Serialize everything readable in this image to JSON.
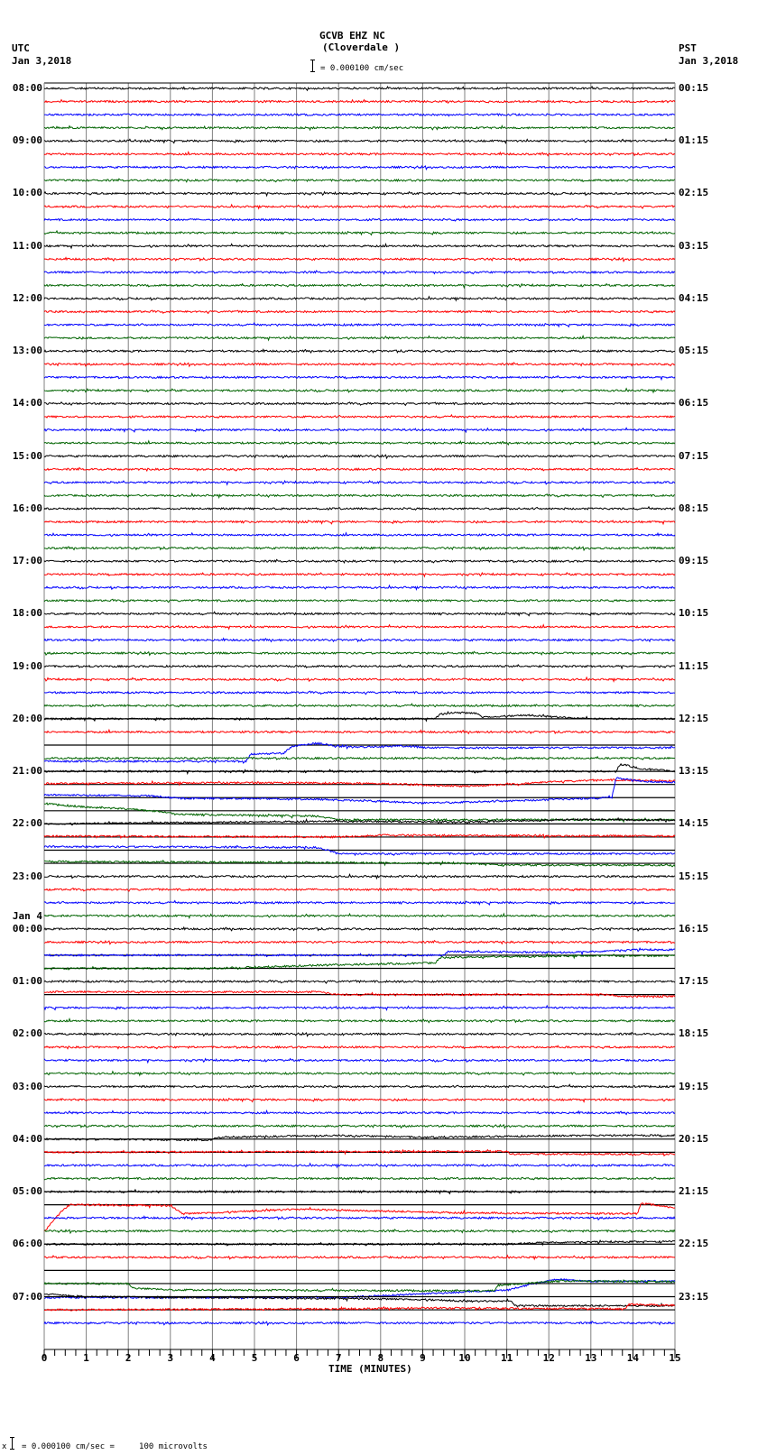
{
  "header": {
    "station": "GCVB EHZ NC",
    "location": "(Cloverdale )",
    "scale_text": "= 0.000100 cm/sec",
    "left_tz": "UTC",
    "left_date": "Jan 3,2018",
    "right_tz": "PST",
    "right_date": "Jan 3,2018"
  },
  "footer": {
    "scale_text": "= 0.000100 cm/sec =     100 microvolts",
    "marker": "x"
  },
  "colors": {
    "trace_cycle": [
      "#000000",
      "#ff0000",
      "#0000ff",
      "#006400"
    ],
    "grid": "#808080",
    "frame": "#000000"
  },
  "chart_data": {
    "type": "line",
    "title": "GCVB EHZ NC (Cloverdale )",
    "subtitle": "= 0.000100 cm/sec",
    "xlabel": "TIME (MINUTES)",
    "ylabel": "",
    "x_ticks": [
      "0",
      "1",
      "2",
      "3",
      "4",
      "5",
      "6",
      "7",
      "8",
      "9",
      "10",
      "11",
      "12",
      "13",
      "14",
      "15"
    ],
    "xlim": [
      0,
      15
    ],
    "grid": true,
    "left_labels": [
      {
        "row": 0,
        "text": "08:00"
      },
      {
        "row": 4,
        "text": "09:00"
      },
      {
        "row": 8,
        "text": "10:00"
      },
      {
        "row": 12,
        "text": "11:00"
      },
      {
        "row": 16,
        "text": "12:00"
      },
      {
        "row": 20,
        "text": "13:00"
      },
      {
        "row": 24,
        "text": "14:00"
      },
      {
        "row": 28,
        "text": "15:00"
      },
      {
        "row": 32,
        "text": "16:00"
      },
      {
        "row": 36,
        "text": "17:00"
      },
      {
        "row": 40,
        "text": "18:00"
      },
      {
        "row": 44,
        "text": "19:00"
      },
      {
        "row": 48,
        "text": "20:00"
      },
      {
        "row": 52,
        "text": "21:00"
      },
      {
        "row": 56,
        "text": "22:00"
      },
      {
        "row": 60,
        "text": "23:00"
      },
      {
        "row": 64,
        "text": "00:00",
        "date": "Jan 4"
      },
      {
        "row": 68,
        "text": "01:00"
      },
      {
        "row": 72,
        "text": "02:00"
      },
      {
        "row": 76,
        "text": "03:00"
      },
      {
        "row": 80,
        "text": "04:00"
      },
      {
        "row": 84,
        "text": "05:00"
      },
      {
        "row": 88,
        "text": "06:00"
      },
      {
        "row": 92,
        "text": "07:00"
      }
    ],
    "right_labels": [
      {
        "row": 0,
        "text": "00:15"
      },
      {
        "row": 4,
        "text": "01:15"
      },
      {
        "row": 8,
        "text": "02:15"
      },
      {
        "row": 12,
        "text": "03:15"
      },
      {
        "row": 16,
        "text": "04:15"
      },
      {
        "row": 20,
        "text": "05:15"
      },
      {
        "row": 24,
        "text": "06:15"
      },
      {
        "row": 28,
        "text": "07:15"
      },
      {
        "row": 32,
        "text": "08:15"
      },
      {
        "row": 36,
        "text": "09:15"
      },
      {
        "row": 40,
        "text": "10:15"
      },
      {
        "row": 44,
        "text": "11:15"
      },
      {
        "row": 48,
        "text": "12:15"
      },
      {
        "row": 52,
        "text": "13:15"
      },
      {
        "row": 56,
        "text": "14:15"
      },
      {
        "row": 60,
        "text": "15:15"
      },
      {
        "row": 64,
        "text": "16:15"
      },
      {
        "row": 68,
        "text": "17:15"
      },
      {
        "row": 72,
        "text": "18:15"
      },
      {
        "row": 76,
        "text": "19:15"
      },
      {
        "row": 80,
        "text": "20:15"
      },
      {
        "row": 84,
        "text": "21:15"
      },
      {
        "row": 88,
        "text": "22:15"
      },
      {
        "row": 92,
        "text": "23:15"
      }
    ],
    "rows_total": 96,
    "minutes_per_row": 15,
    "traces_with_offsets": [
      {
        "row": 48,
        "points": [
          [
            0,
            0
          ],
          [
            9.3,
            0
          ],
          [
            9.4,
            -5
          ],
          [
            9.8,
            -7
          ],
          [
            10.3,
            -6
          ],
          [
            10.4,
            -2
          ],
          [
            11.5,
            -4
          ],
          [
            12.5,
            -1
          ],
          [
            13,
            0
          ],
          [
            15,
            0
          ]
        ]
      },
      {
        "row": 50,
        "points": [
          [
            0,
            18
          ],
          [
            4.8,
            18
          ],
          [
            4.9,
            10
          ],
          [
            5.7,
            9
          ],
          [
            5.9,
            1
          ],
          [
            6.5,
            -2
          ],
          [
            6.9,
            1
          ],
          [
            7.5,
            2
          ],
          [
            8.5,
            1
          ],
          [
            9.2,
            3
          ]
        ]
      },
      {
        "row": 52,
        "points": [
          [
            0,
            0
          ],
          [
            13.6,
            0
          ],
          [
            13.7,
            -8
          ],
          [
            14.2,
            -3
          ],
          [
            15,
            0
          ]
        ]
      },
      {
        "row": 53,
        "points": [
          [
            0,
            -1
          ],
          [
            5,
            -2
          ],
          [
            8,
            -1
          ],
          [
            10,
            2
          ],
          [
            11.5,
            -1
          ],
          [
            12,
            -3
          ],
          [
            13.5,
            -5
          ],
          [
            15,
            -4
          ]
        ]
      },
      {
        "row": 54,
        "points": [
          [
            0,
            -3
          ],
          [
            2.5,
            -2
          ],
          [
            3.3,
            1
          ],
          [
            5,
            1
          ],
          [
            6.5,
            2
          ],
          [
            8,
            4
          ],
          [
            9,
            6
          ],
          [
            10,
            5
          ],
          [
            11.5,
            3
          ],
          [
            13.5,
            0
          ],
          [
            13.6,
            -22
          ],
          [
            14.2,
            -18
          ],
          [
            15,
            -17
          ]
        ]
      },
      {
        "row": 55,
        "points": [
          [
            0,
            -8
          ],
          [
            1,
            -4
          ],
          [
            2,
            -2
          ],
          [
            3,
            2
          ],
          [
            3.1,
            4
          ],
          [
            6.5,
            6
          ],
          [
            7,
            10
          ],
          [
            15,
            10
          ]
        ]
      },
      {
        "row": 56,
        "points": [
          [
            0,
            0
          ],
          [
            7,
            -3
          ],
          [
            10,
            -2
          ],
          [
            12,
            -4
          ],
          [
            13,
            -5
          ],
          [
            15,
            -4
          ]
        ]
      },
      {
        "row": 57,
        "points": [
          [
            0,
            -1
          ],
          [
            7,
            0
          ],
          [
            8,
            -2
          ],
          [
            15,
            -1
          ]
        ]
      },
      {
        "row": 58,
        "points": [
          [
            0,
            -4
          ],
          [
            6.5,
            -3
          ],
          [
            7,
            4
          ],
          [
            15,
            4
          ]
        ]
      },
      {
        "row": 59,
        "points": [
          [
            0,
            -2
          ],
          [
            10,
            0
          ],
          [
            11,
            2
          ],
          [
            15,
            2
          ]
        ]
      },
      {
        "row": 66,
        "points": [
          [
            0,
            0
          ],
          [
            9.5,
            0
          ],
          [
            9.6,
            -4
          ],
          [
            12.5,
            -3
          ],
          [
            14,
            -6
          ],
          [
            15,
            -6
          ]
        ]
      },
      {
        "row": 67,
        "points": [
          [
            0,
            0
          ],
          [
            4,
            0
          ],
          [
            7,
            -4
          ],
          [
            9.3,
            -6
          ],
          [
            9.4,
            -12
          ],
          [
            13,
            -14
          ],
          [
            15,
            -14
          ]
        ]
      },
      {
        "row": 69,
        "points": [
          [
            0,
            -3
          ],
          [
            6.5,
            -3
          ],
          [
            7,
            0
          ],
          [
            13.5,
            0
          ],
          [
            13.6,
            2
          ],
          [
            15,
            2
          ]
        ]
      },
      {
        "row": 92,
        "points": [
          [
            0,
            -3
          ],
          [
            1,
            0
          ],
          [
            7,
            2
          ],
          [
            9,
            3
          ],
          [
            10,
            5
          ],
          [
            11.1,
            5
          ],
          [
            11.2,
            10
          ],
          [
            15,
            10
          ]
        ]
      },
      {
        "row": 91,
        "points": [
          [
            0,
            0
          ],
          [
            2,
            0
          ],
          [
            2.1,
            5
          ],
          [
            3,
            7
          ],
          [
            10,
            8
          ],
          [
            10.7,
            8
          ],
          [
            10.8,
            2
          ],
          [
            12.3,
            -3
          ],
          [
            15,
            -2
          ]
        ]
      },
      {
        "row": 93,
        "points": [
          [
            0,
            0
          ],
          [
            7,
            -1
          ],
          [
            9,
            -2
          ],
          [
            13.8,
            -1
          ],
          [
            13.9,
            -6
          ],
          [
            15,
            -5
          ]
        ]
      },
      {
        "row": 85,
        "points": [
          [
            0,
            30
          ],
          [
            0.4,
            8
          ],
          [
            0.6,
            0
          ],
          [
            3,
            1
          ],
          [
            3.3,
            10
          ],
          [
            6,
            5
          ],
          [
            10,
            9
          ],
          [
            14.1,
            10
          ],
          [
            14.2,
            -2
          ],
          [
            15,
            4
          ]
        ]
      },
      {
        "row": 84,
        "points": [
          [
            0,
            0
          ],
          [
            15,
            0
          ]
        ]
      },
      {
        "row": 88,
        "points": [
          [
            0,
            0
          ],
          [
            11,
            0
          ],
          [
            12,
            -2
          ],
          [
            15,
            -3
          ]
        ]
      },
      {
        "row": 90,
        "points": [
          [
            0,
            30
          ],
          [
            7,
            30
          ],
          [
            11,
            22
          ],
          [
            11.5,
            16
          ],
          [
            12.2,
            10
          ],
          [
            13,
            12
          ],
          [
            15,
            12
          ]
        ]
      },
      {
        "row": 80,
        "points": [
          [
            0,
            0
          ],
          [
            4,
            1
          ],
          [
            4.1,
            -2
          ],
          [
            7,
            -4
          ],
          [
            9,
            -2
          ],
          [
            13,
            -4
          ],
          [
            15,
            -4
          ]
        ]
      },
      {
        "row": 81,
        "points": [
          [
            0,
            0
          ],
          [
            11,
            -1
          ],
          [
            11.1,
            2
          ],
          [
            15,
            2
          ]
        ]
      }
    ]
  }
}
